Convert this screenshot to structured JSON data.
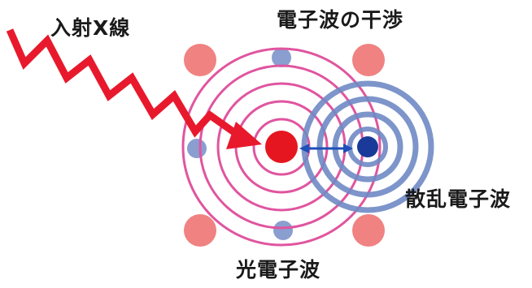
{
  "labels": {
    "incident_xray": "入射X線",
    "electron_interference": "電子波の干渉",
    "scattered_electron_wave": "散乱電子波",
    "photoelectron_wave": "光電子波"
  },
  "colors": {
    "xray_zigzag": "#e8192c",
    "photoelectron_rings": "#e0559f",
    "scattered_rings": "#6f8ac4",
    "emitter_atom": "#e5161f",
    "scatterer_atom": "#1a3a9a",
    "lattice_large_atom": "#f08282",
    "lattice_small_atom": "#8a9ed0",
    "bond_arrow": "#1f4fb8",
    "text": "#1a1a1a"
  },
  "icons": {
    "xray": "zigzag-arrow",
    "atoms": "filled-circle"
  }
}
